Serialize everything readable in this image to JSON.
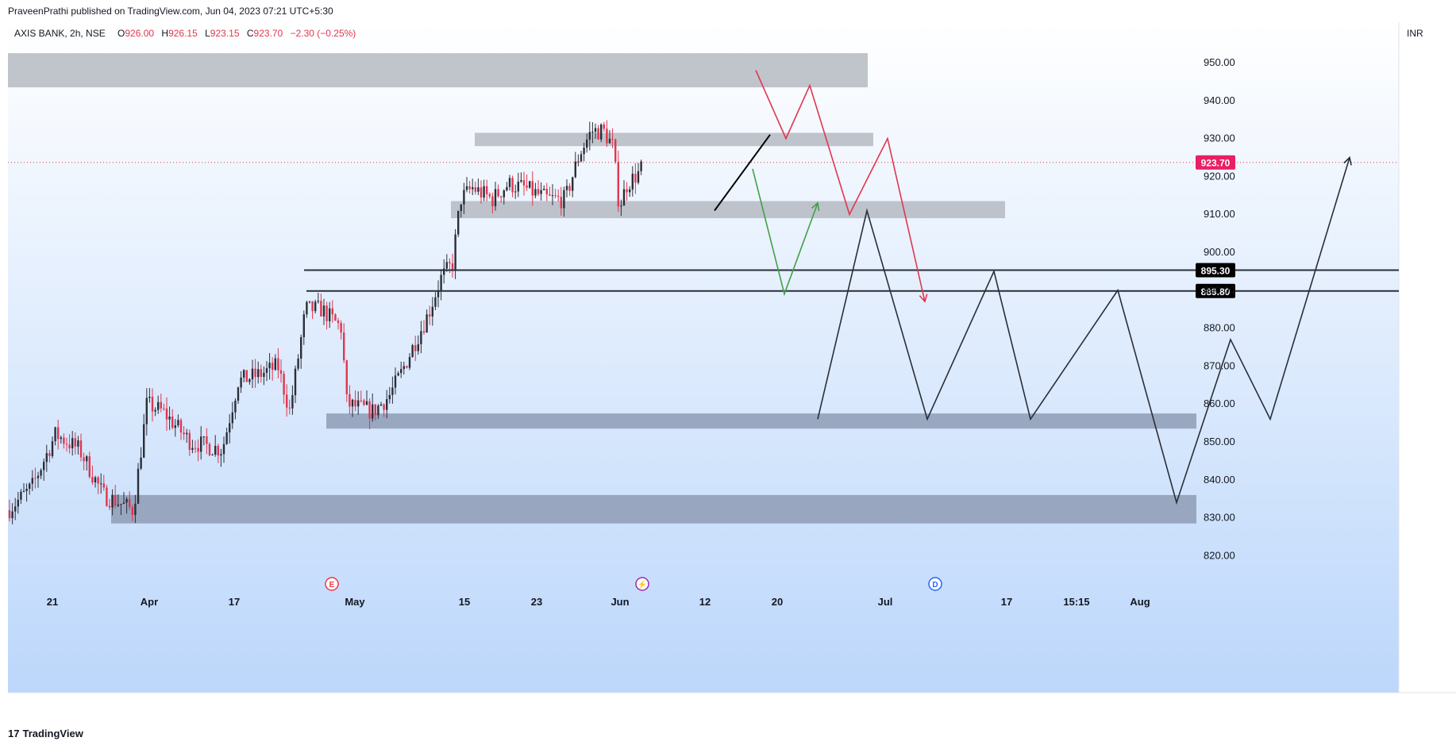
{
  "header": {
    "published_line": "PraveenPrathi published on TradingView.com, Jun 04, 2023 07:21 UTC+5:30"
  },
  "legend": {
    "symbol": "AXIS BANK, 2h, NSE",
    "o_label": "O",
    "o_value": "926.00",
    "h_label": "H",
    "h_value": "926.15",
    "l_label": "L",
    "l_value": "923.15",
    "c_label": "C",
    "c_value": "923.70",
    "change": "−2.30 (−0.25%)"
  },
  "currency": "INR",
  "footer": {
    "brand": "TradingView",
    "mark": "17"
  },
  "colors": {
    "up": "#2a2e39",
    "down": "#e0364f",
    "price_label": "#e91e63",
    "level_label": "#000000",
    "red_path": "#e0364f",
    "green_path": "#43a047",
    "black_path": "#2a2e39",
    "zone_light": "#b2b5be",
    "zone_dark": "#8592ab"
  },
  "event_markers": [
    {
      "letter": "E",
      "kind": "earnings",
      "color": "#f23645"
    },
    {
      "letter": "⚡",
      "kind": "split",
      "color": "#9c27b0"
    },
    {
      "letter": "D",
      "kind": "dividend",
      "color": "#2962ff"
    }
  ],
  "chart_data": {
    "type": "candlestick",
    "symbol": "AXIS BANK",
    "interval": "2h",
    "exchange": "NSE",
    "y_axis": {
      "ticks": [
        950,
        940,
        930,
        920,
        910,
        900,
        890,
        880,
        870,
        860,
        850,
        840,
        830,
        820
      ],
      "tick_labels": [
        "950.00",
        "940.00",
        "930.00",
        "920.00",
        "910.00",
        "900.00",
        "890.00",
        "880.00",
        "870.00",
        "860.00",
        "850.00",
        "840.00",
        "830.00",
        "820.00"
      ],
      "range": [
        813,
        960
      ]
    },
    "x_axis": {
      "tick_labels": [
        "21",
        "Apr",
        "17",
        "May",
        "15",
        "23",
        "Jun",
        "12",
        "20",
        "Jul",
        "17",
        "15:15",
        "Aug"
      ]
    },
    "last_price": {
      "value": 923.7,
      "label": "923.70"
    },
    "horizontal_levels": [
      {
        "value": 895.3,
        "label": "895.30"
      },
      {
        "value": 889.8,
        "label": "889.80"
      }
    ],
    "zones": [
      {
        "top": 952.5,
        "bottom": 943.5,
        "shade": "light"
      },
      {
        "top": 931.5,
        "bottom": 928.0,
        "shade": "light"
      },
      {
        "top": 913.5,
        "bottom": 909.0,
        "shade": "light"
      },
      {
        "top": 857.5,
        "bottom": 853.5,
        "shade": "dark"
      },
      {
        "top": 836.0,
        "bottom": 828.5,
        "shade": "dark"
      }
    ],
    "projection_paths": [
      {
        "color": "red",
        "points": [
          [
            952,
            948
          ],
          [
            990,
            930
          ],
          [
            1020,
            944
          ],
          [
            1070,
            910
          ],
          [
            1118,
            930
          ],
          [
            1165,
            887
          ]
        ]
      },
      {
        "color": "green",
        "points": [
          [
            948,
            922
          ],
          [
            988,
            889
          ],
          [
            1030,
            913
          ]
        ]
      },
      {
        "color": "black-trendline",
        "points": [
          [
            900,
            911
          ],
          [
            970,
            931
          ]
        ]
      },
      {
        "color": "black",
        "points": [
          [
            1030,
            856
          ],
          [
            1092,
            911
          ],
          [
            1168,
            856
          ],
          [
            1252,
            895
          ],
          [
            1298,
            856
          ],
          [
            1408,
            890
          ],
          [
            1482,
            834
          ],
          [
            1550,
            877
          ],
          [
            1600,
            856
          ],
          [
            1700,
            925
          ]
        ]
      }
    ]
  }
}
